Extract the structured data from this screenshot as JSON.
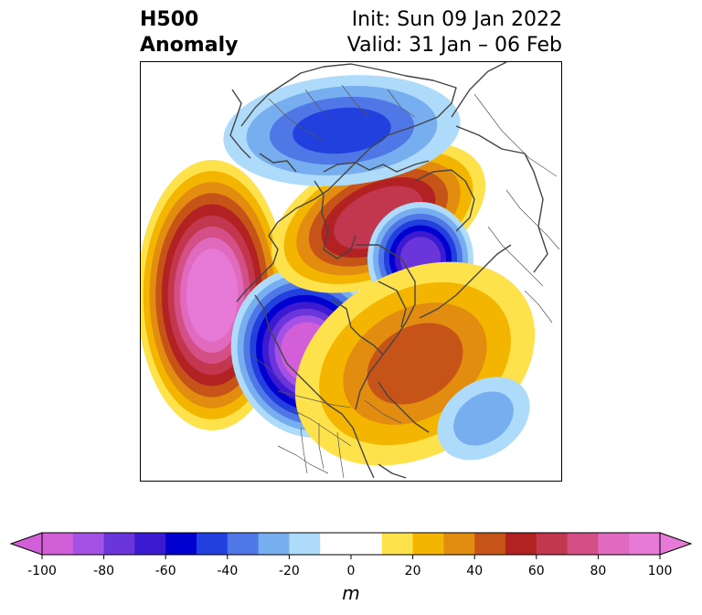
{
  "header": {
    "title_line1": "H500",
    "title_line2": "Anomaly",
    "init": "Init: Sun 09 Jan 2022",
    "valid": "Valid: 31 Jan – 06 Feb"
  },
  "colorbar": {
    "unit": "m",
    "range": [
      -100,
      100
    ],
    "step": 10,
    "ticks": [
      -100,
      -80,
      -60,
      -40,
      -20,
      0,
      20,
      40,
      60,
      80,
      100
    ],
    "tick_labels": [
      "-100",
      "-80",
      "-60",
      "-40",
      "-20",
      "0",
      "20",
      "40",
      "60",
      "80",
      "100"
    ],
    "colors": [
      "#d25fd8",
      "#a451e6",
      "#6a35da",
      "#3b1ad2",
      "#0000d0",
      "#2240de",
      "#4f78e6",
      "#77aef0",
      "#aedbfa",
      "#ffffff",
      "#ffffff",
      "#fde24c",
      "#f3b500",
      "#e28c10",
      "#c65418",
      "#b22222",
      "#c2364e",
      "#d44f86",
      "#e06abd",
      "#e67ad6"
    ],
    "extend": "both"
  },
  "map": {
    "projection": "north-polar-stereographic",
    "field": "500 hPa geopotential height anomaly",
    "features": [
      {
        "name": "positive-anomaly-north-pacific",
        "sign": "positive",
        "peak_m": 100
      },
      {
        "name": "negative-anomaly-western-north-america",
        "sign": "negative",
        "peak_m": -100
      },
      {
        "name": "positive-anomaly-siberia-arctic",
        "sign": "positive",
        "peak_m": 60
      },
      {
        "name": "negative-anomaly-greenland-sea",
        "sign": "negative",
        "peak_m": -70
      },
      {
        "name": "negative-anomaly-north-asia",
        "sign": "negative",
        "peak_m": -40
      },
      {
        "name": "positive-anomaly-eastern-north-america-atlantic",
        "sign": "positive",
        "peak_m": 40
      },
      {
        "name": "negative-anomaly-mid-atlantic",
        "sign": "negative",
        "peak_m": -20
      }
    ]
  }
}
